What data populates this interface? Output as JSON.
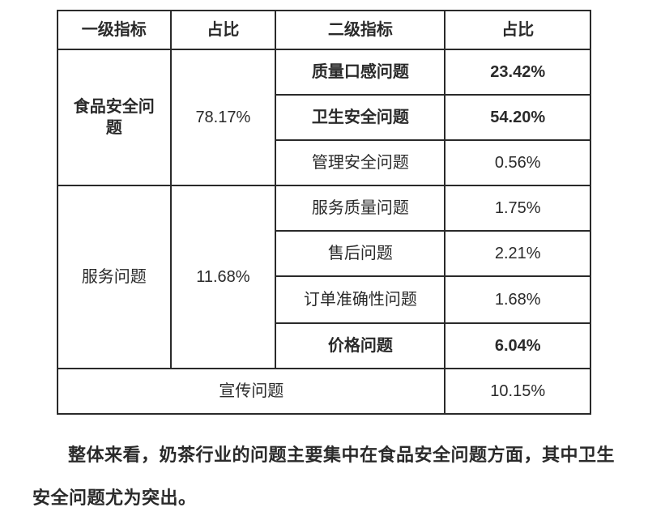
{
  "table": {
    "headers": {
      "h1": "一级指标",
      "h2": "占比",
      "h3": "二级指标",
      "h4": "占比"
    },
    "group1": {
      "label": "食品安全问题",
      "pct": "78.17%",
      "rows": [
        {
          "label": "质量口感问题",
          "pct": "23.42%",
          "bold": true
        },
        {
          "label": "卫生安全问题",
          "pct": "54.20%",
          "bold": true
        },
        {
          "label": "管理安全问题",
          "pct": "0.56%",
          "bold": false
        }
      ]
    },
    "group2": {
      "label": "服务问题",
      "pct": "11.68%",
      "rows": [
        {
          "label": "服务质量问题",
          "pct": "1.75%",
          "bold": false
        },
        {
          "label": "售后问题",
          "pct": "2.21%",
          "bold": false
        },
        {
          "label": "订单准确性问题",
          "pct": "1.68%",
          "bold": false
        },
        {
          "label": "价格问题",
          "pct": "6.04%",
          "bold": true
        }
      ]
    },
    "footer": {
      "label": "宣传问题",
      "pct": "10.15%"
    }
  },
  "caption": "整体来看，奶茶行业的问题主要集中在食品安全问题方面，其中卫生安全问题尤为突出。",
  "style": {
    "border_color": "#2a2a2a",
    "background": "#ffffff",
    "font_size_cell": 20,
    "font_size_caption": 22
  }
}
